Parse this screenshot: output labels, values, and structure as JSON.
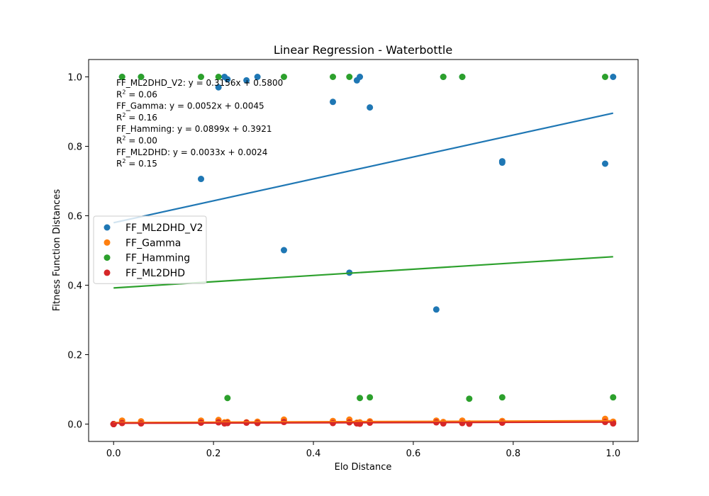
{
  "chart_data": {
    "type": "scatter",
    "title": "Linear Regression - Waterbottle",
    "xlabel": "Elo Distance",
    "ylabel": "Fitness Function Distances",
    "xlim": [
      -0.05,
      1.05
    ],
    "ylim": [
      -0.05,
      1.05
    ],
    "xticks": [
      0.0,
      0.2,
      0.4,
      0.6,
      0.8,
      1.0
    ],
    "yticks": [
      0.0,
      0.2,
      0.4,
      0.6,
      0.8,
      1.0
    ],
    "xtick_labels": [
      "0.0",
      "0.2",
      "0.4",
      "0.6",
      "0.8",
      "1.0"
    ],
    "ytick_labels": [
      "0.0",
      "0.2",
      "0.4",
      "0.6",
      "0.8",
      "1.0"
    ],
    "grid": false,
    "legend_position": "center-left",
    "series": [
      {
        "name": "FF_ML2DHD_V2",
        "color": "#1f77b4",
        "x": [
          0.0,
          0.0,
          0.0,
          0.017,
          0.055,
          0.175,
          0.21,
          0.222,
          0.228,
          0.266,
          0.288,
          0.341,
          0.439,
          0.472,
          0.487,
          0.493,
          0.513,
          0.646,
          0.66,
          0.698,
          0.778,
          0.778,
          0.984,
          1.0
        ],
        "y": [
          0.0,
          0.0,
          0.0,
          1.0,
          1.0,
          0.706,
          0.97,
          1.0,
          0.993,
          0.99,
          1.0,
          0.501,
          0.928,
          0.436,
          0.99,
          1.0,
          0.912,
          0.33,
          1.0,
          1.0,
          0.757,
          0.753,
          0.75,
          1.0
        ],
        "fit": {
          "slope": 0.3156,
          "intercept": 0.58,
          "r2": 0.06
        }
      },
      {
        "name": "FF_Gamma",
        "color": "#ff7f0e",
        "x": [
          0.0,
          0.0,
          0.0,
          0.017,
          0.055,
          0.175,
          0.21,
          0.222,
          0.228,
          0.266,
          0.288,
          0.341,
          0.439,
          0.472,
          0.487,
          0.493,
          0.513,
          0.646,
          0.66,
          0.698,
          0.712,
          0.778,
          0.984,
          1.0
        ],
        "y": [
          0.0,
          0.0,
          0.0,
          0.01,
          0.008,
          0.01,
          0.012,
          0.005,
          0.006,
          0.005,
          0.007,
          0.013,
          0.009,
          0.013,
          0.004,
          0.005,
          0.008,
          0.01,
          0.006,
          0.01,
          0.002,
          0.009,
          0.015,
          0.007
        ],
        "fit": {
          "slope": 0.0052,
          "intercept": 0.0045,
          "r2": 0.16
        }
      },
      {
        "name": "FF_Hamming",
        "color": "#2ca02c",
        "x": [
          0.017,
          0.055,
          0.175,
          0.21,
          0.228,
          0.341,
          0.439,
          0.472,
          0.493,
          0.513,
          0.66,
          0.698,
          0.712,
          0.778,
          0.984,
          1.0
        ],
        "y": [
          1.0,
          1.0,
          1.0,
          1.0,
          0.075,
          1.0,
          1.0,
          1.0,
          0.075,
          0.077,
          1.0,
          1.0,
          0.073,
          0.077,
          1.0,
          0.077
        ],
        "fit": {
          "slope": 0.0899,
          "intercept": 0.3921,
          "r2": 0.0
        }
      },
      {
        "name": "FF_ML2DHD",
        "color": "#d62728",
        "x": [
          0.0,
          0.0,
          0.0,
          0.017,
          0.055,
          0.175,
          0.21,
          0.222,
          0.228,
          0.266,
          0.288,
          0.341,
          0.439,
          0.472,
          0.487,
          0.493,
          0.513,
          0.646,
          0.66,
          0.698,
          0.712,
          0.778,
          0.984,
          1.0
        ],
        "y": [
          0.0,
          0.0,
          0.0,
          0.003,
          0.002,
          0.004,
          0.005,
          0.002,
          0.003,
          0.004,
          0.003,
          0.006,
          0.003,
          0.005,
          0.002,
          0.001,
          0.004,
          0.005,
          0.002,
          0.003,
          0.001,
          0.004,
          0.006,
          0.002
        ],
        "fit": {
          "slope": 0.0033,
          "intercept": 0.0024,
          "r2": 0.15
        }
      }
    ],
    "annotations": [
      {
        "kind": "eq",
        "text": "FF_ML2DHD_V2: y = 0.3156x + 0.5800"
      },
      {
        "kind": "r2",
        "value": "0.06"
      },
      {
        "kind": "eq",
        "text": "FF_Gamma: y = 0.0052x + 0.0045"
      },
      {
        "kind": "r2",
        "value": "0.16"
      },
      {
        "kind": "eq",
        "text": "FF_Hamming: y = 0.0899x + 0.3921"
      },
      {
        "kind": "r2",
        "value": "0.00"
      },
      {
        "kind": "eq",
        "text": "FF_ML2DHD: y = 0.0033x + 0.0024"
      },
      {
        "kind": "r2",
        "value": "0.15"
      }
    ]
  }
}
